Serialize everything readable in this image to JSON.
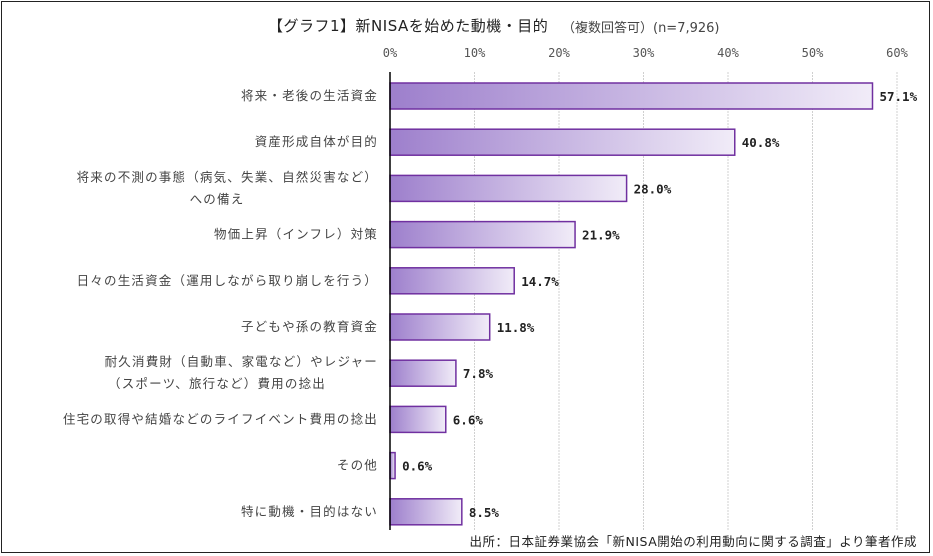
{
  "chart_data": {
    "type": "bar",
    "orientation": "horizontal",
    "title": "【グラフ1】新NISAを始めた動機・目的",
    "subtitle": "（複数回答可）(n=7,926)",
    "xlabel": "",
    "ylabel": "",
    "xlim": [
      0,
      60
    ],
    "ticks": [
      0,
      10,
      20,
      30,
      40,
      50,
      60
    ],
    "tick_labels": [
      "0%",
      "10%",
      "20%",
      "30%",
      "40%",
      "50%",
      "60%"
    ],
    "grid": true,
    "categories": [
      [
        "将来・老後の生活資金"
      ],
      [
        "資産形成自体が目的"
      ],
      [
        "将来の不測の事態（病気、失業、自然災害など）",
        "への備え"
      ],
      [
        "物価上昇（インフレ）対策"
      ],
      [
        "日々の生活資金（運用しながら取り崩しを行う）"
      ],
      [
        "子どもや孫の教育資金"
      ],
      [
        "耐久消費財（自動車、家電など）やレジャー",
        "（スポーツ、旅行など）費用の捻出"
      ],
      [
        "住宅の取得や結婚などのライフイベント費用の捻出"
      ],
      [
        "その他"
      ],
      [
        "特に動機・目的はない"
      ]
    ],
    "values": [
      57.1,
      40.8,
      28.0,
      21.9,
      14.7,
      11.8,
      7.8,
      6.6,
      0.6,
      8.5
    ],
    "value_labels": [
      "57.1%",
      "40.8%",
      "28.0%",
      "21.9%",
      "14.7%",
      "11.8%",
      "7.8%",
      "6.6%",
      "0.6%",
      "8.5%"
    ],
    "source": "出所：日本証券業協会「新NISA開始の利用動向に関する調査」より筆者作成",
    "colors": {
      "bar_start": "#9d7fcc",
      "bar_end": "#f1ecf8",
      "bar_border": "#7030a0",
      "grid": "#d0d0d0",
      "axis": "#000000"
    }
  }
}
